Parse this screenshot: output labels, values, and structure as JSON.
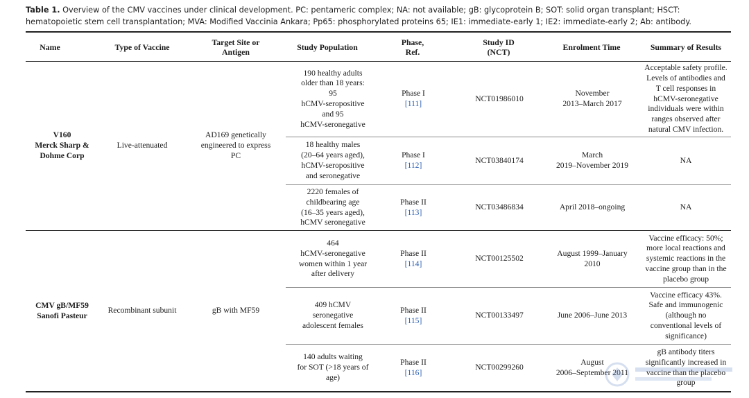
{
  "caption": {
    "label": "Table 1.",
    "text": " Overview of the CMV vaccines under clinical development. PC: pentameric complex; NA: not available; gB: glycoprotein B; SOT: solid organ transplant; HSCT: hematopoietic stem cell transplantation; MVA: Modified Vaccinia Ankara; Pp65: phosphorylated proteins 65; IE1: immediate-early 1; IE2: immediate-early 2; Ab: antibody."
  },
  "headers": [
    "Name",
    "Type of Vaccine",
    "Target Site or\nAntigen",
    "Study Population",
    "Phase,\nRef.",
    "Study ID\n(NCT)",
    "Enrolment Time",
    "Summary of Results"
  ],
  "groups": [
    {
      "name": "V160\nMerck Sharp &\nDohme Corp",
      "type": "Live-attenuated",
      "target": "AD169 genetically\nengineered to express\nPC",
      "rows": [
        {
          "population": "190 healthy adults\nolder than 18 years:\n95\nhCMV-seropositive\nand 95\nhCMV-seronegative",
          "phase": "Phase I",
          "ref": "[111]",
          "id": "NCT01986010",
          "time": "November\n2013–March 2017",
          "summary": "Acceptable safety profile.\nLevels of antibodies and\nT cell responses in\nhCMV-seronegative\nindividuals were within\nranges observed after\nnatural CMV infection."
        },
        {
          "population": "18 healthy males\n(20–64 years aged),\nhCMV-seropositive\nand seronegative",
          "phase": "Phase I",
          "ref": "[112]",
          "id": "NCT03840174",
          "time": "March\n2019–November 2019",
          "summary": "NA"
        },
        {
          "population": "2220 females of\nchildbearing age\n(16–35 years aged),\nhCMV seronegative",
          "phase": "Phase II",
          "ref": "[113]",
          "id": "NCT03486834",
          "time": "April 2018–ongoing",
          "summary": "NA"
        }
      ]
    },
    {
      "name": "CMV gB/MF59\nSanofi Pasteur",
      "type": "Recombinant subunit",
      "target": "gB with MF59",
      "rows": [
        {
          "population": "464\nhCMV-seronegative\nwomen within 1 year\nafter delivery",
          "phase": "Phase II",
          "ref": "[114]",
          "id": "NCT00125502",
          "time": "August 1999–January\n2010",
          "summary": "Vaccine efficacy: 50%;\nmore local reactions and\nsystemic reactions in the\nvaccine group than in the\nplacebo group"
        },
        {
          "population": "409 hCMV\nseronegative\nadolescent females",
          "phase": "Phase II",
          "ref": "[115]",
          "id": "NCT00133497",
          "time": "June 2006–June 2013",
          "summary": "Vaccine efficacy 43%.\nSafe and immunogenic\n(although no\nconventional levels of\nsignificance)"
        },
        {
          "population": "140 adults waiting\nfor SOT (>18 years of\nage)",
          "phase": "Phase II",
          "ref": "[116]",
          "id": "NCT00299260",
          "time": "August\n2006–September 2011",
          "summary": "gB antibody titers\nsignificantly increased in\nvaccine than the placebo\ngroup"
        }
      ]
    }
  ]
}
